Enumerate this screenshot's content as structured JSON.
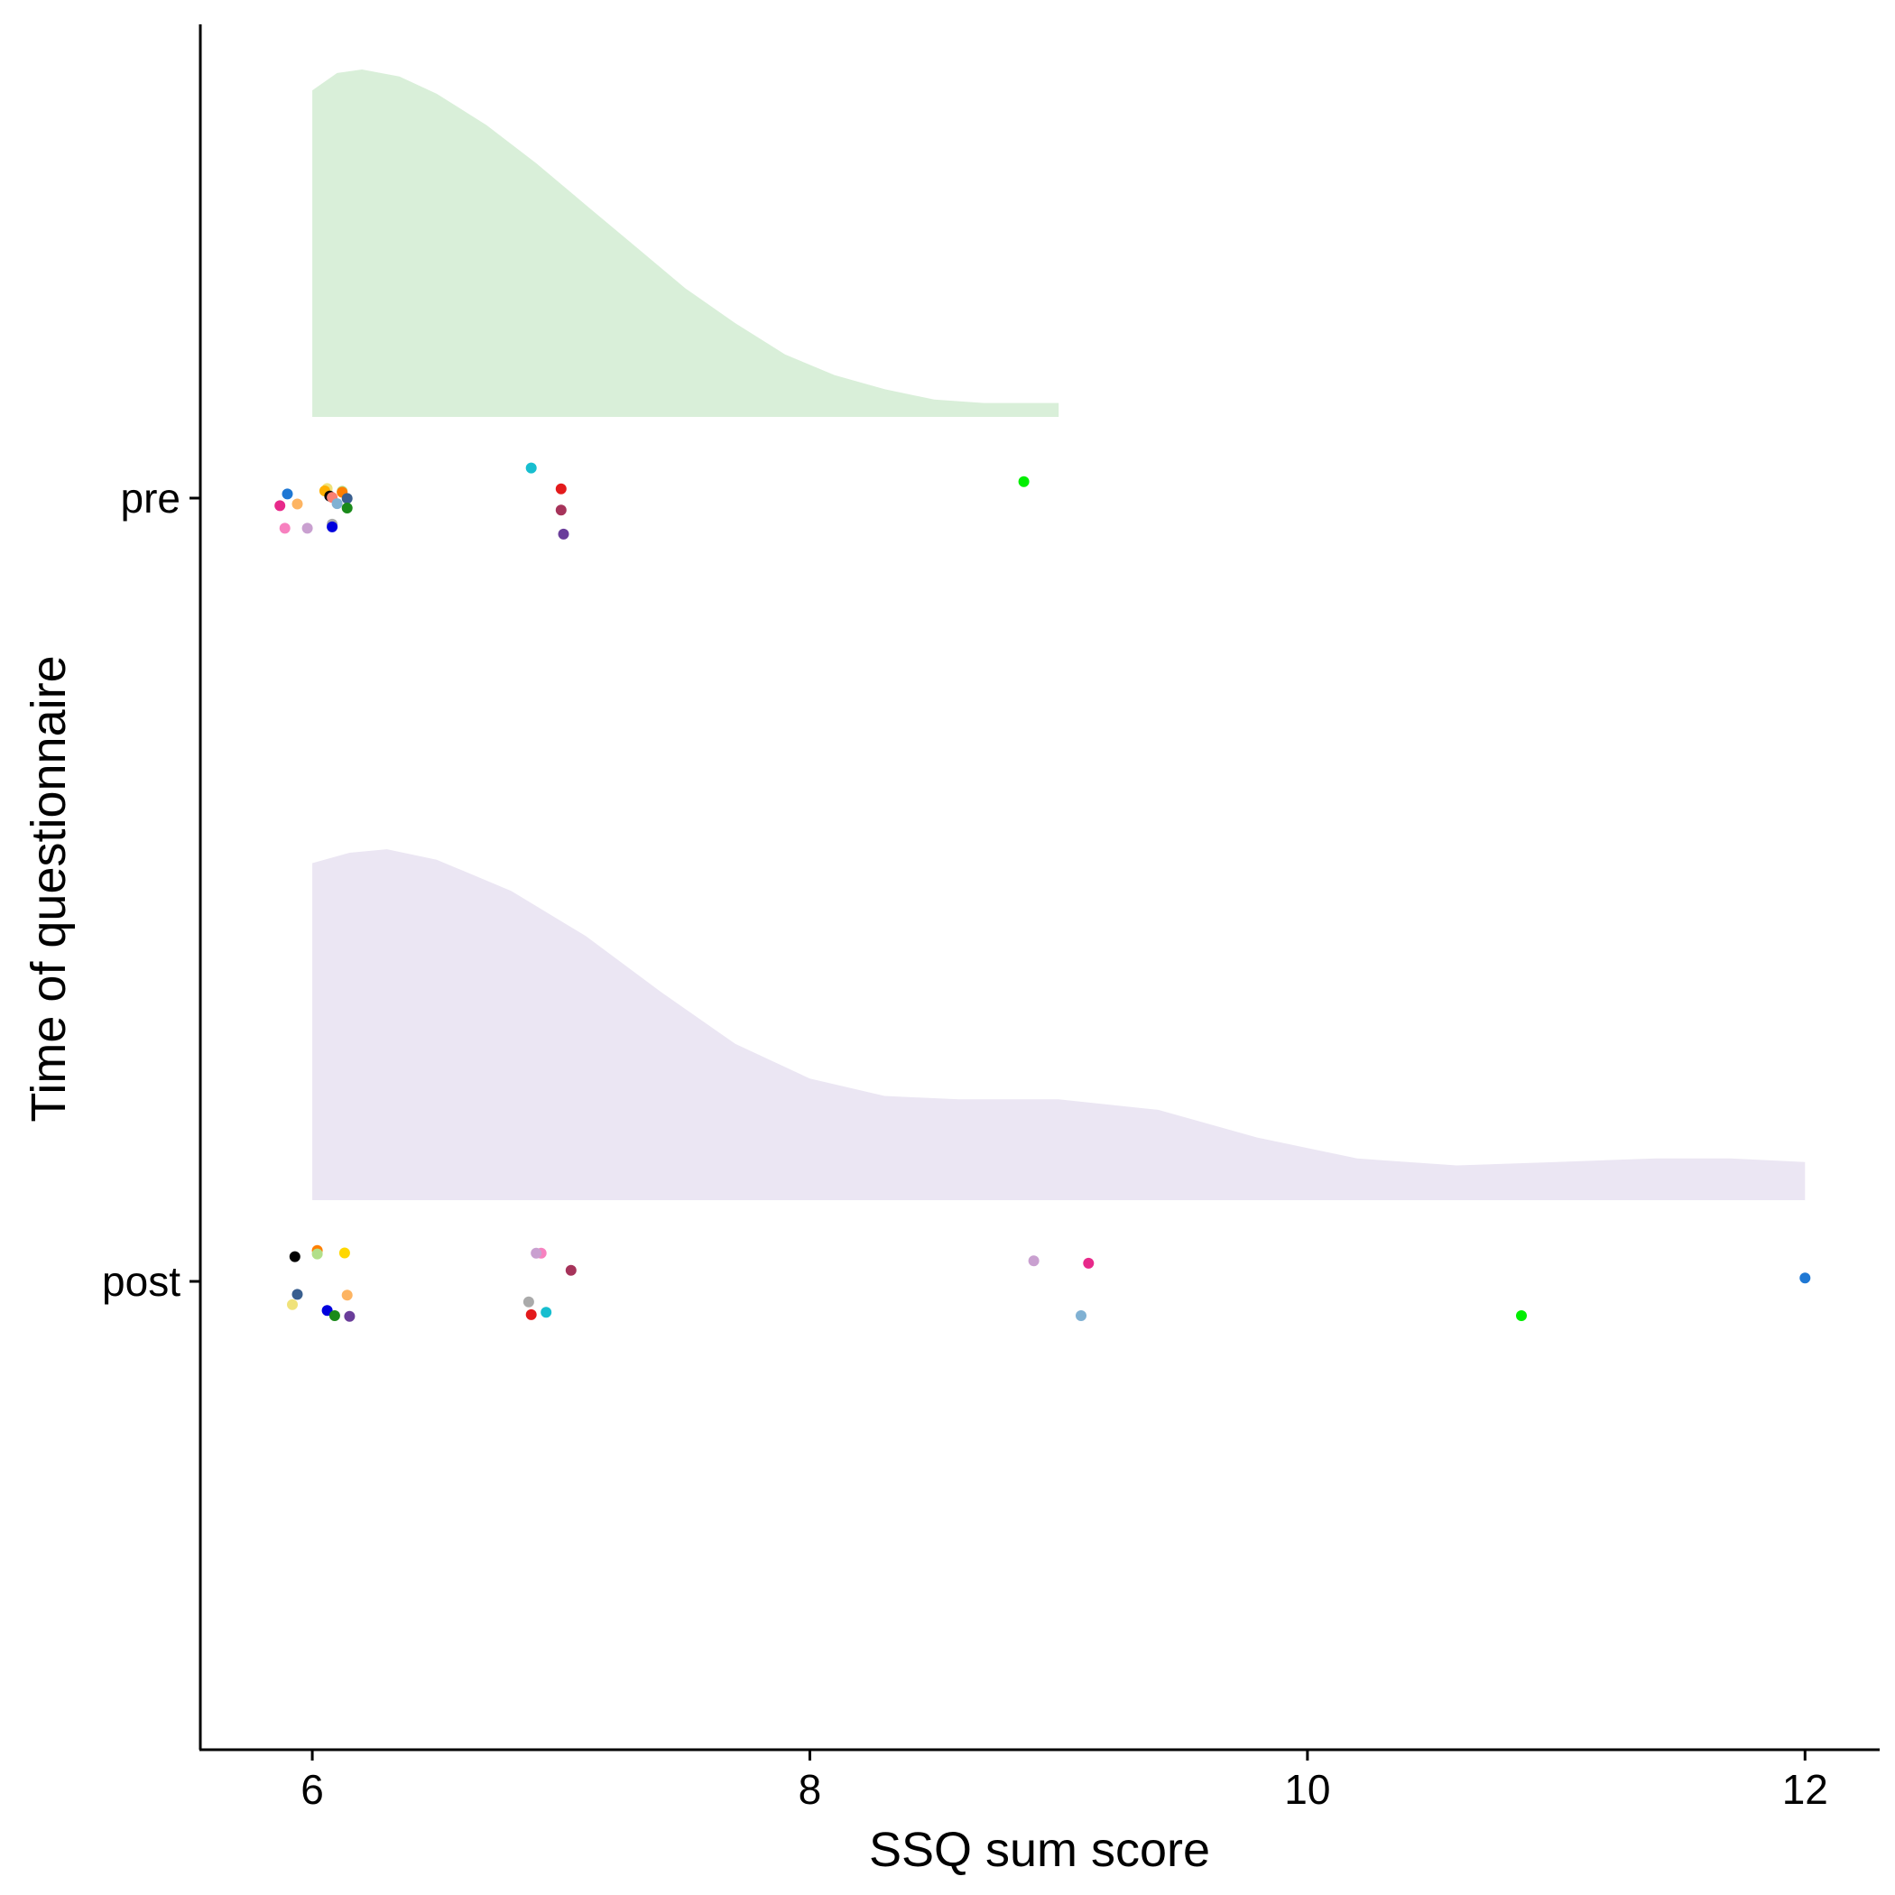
{
  "chart_data": {
    "type": "raincloud",
    "xlabel": "SSQ sum score",
    "ylabel": "Time of questionnaire",
    "xlim": [
      5.55,
      12.3
    ],
    "x_ticks": [
      6,
      8,
      10,
      12
    ],
    "categories": [
      "pre",
      "post"
    ],
    "grid": false,
    "legend": "none",
    "series": [
      {
        "category": "pre",
        "density_color": "#d9efd9",
        "density_range": [
          6,
          9
        ],
        "density_x": [
          6.0,
          6.1,
          6.2,
          6.35,
          6.5,
          6.7,
          6.9,
          7.1,
          7.3,
          7.5,
          7.7,
          7.9,
          8.1,
          8.3,
          8.5,
          8.7,
          9.0
        ],
        "density_y": [
          0.94,
          0.99,
          1.0,
          0.98,
          0.93,
          0.84,
          0.73,
          0.61,
          0.49,
          0.37,
          0.27,
          0.18,
          0.12,
          0.08,
          0.05,
          0.04,
          0.04
        ],
        "points": [
          {
            "x": 5.9,
            "color": "#1f78d4",
            "jitter": 0.12
          },
          {
            "x": 6.06,
            "color": "#f0e27a",
            "jitter": 0.28
          },
          {
            "x": 6.05,
            "color": "#ffb000",
            "jitter": 0.21
          },
          {
            "x": 6.12,
            "color": "#b2df8a",
            "jitter": 0.2
          },
          {
            "x": 6.12,
            "color": "#ff7f00",
            "jitter": 0.17
          },
          {
            "x": 6.07,
            "color": "#000000",
            "jitter": 0.06
          },
          {
            "x": 6.08,
            "color": "#fb8072",
            "jitter": 0.02
          },
          {
            "x": 6.14,
            "color": "#3a5f8f",
            "jitter": -0.01
          },
          {
            "x": 6.1,
            "color": "#80b1d3",
            "jitter": -0.16
          },
          {
            "x": 6.14,
            "color": "#1a8a1a",
            "jitter": -0.29
          },
          {
            "x": 5.87,
            "color": "#e7298a",
            "jitter": -0.22
          },
          {
            "x": 5.94,
            "color": "#fdb462",
            "jitter": -0.17
          },
          {
            "x": 5.89,
            "color": "#f781bf",
            "jitter": -0.88
          },
          {
            "x": 5.98,
            "color": "#c9a0d0",
            "jitter": -0.88
          },
          {
            "x": 6.08,
            "color": "#aaaaaa",
            "jitter": -0.76
          },
          {
            "x": 6.08,
            "color": "#0000dd",
            "jitter": -0.84
          },
          {
            "x": 6.88,
            "color": "#17becf",
            "jitter": 0.88
          },
          {
            "x": 7.0,
            "color": "#e31a1c",
            "jitter": 0.27
          },
          {
            "x": 7.0,
            "color": "#a6335a",
            "jitter": -0.35
          },
          {
            "x": 7.01,
            "color": "#6a3d9a",
            "jitter": -1.05
          },
          {
            "x": 8.86,
            "color": "#00ee00",
            "jitter": 0.48
          }
        ]
      },
      {
        "category": "post",
        "density_color": "#ebe6f3",
        "density_range": [
          6,
          12
        ],
        "density_x": [
          6.0,
          6.15,
          6.3,
          6.5,
          6.8,
          7.1,
          7.4,
          7.7,
          8.0,
          8.3,
          8.6,
          9.0,
          9.4,
          9.8,
          10.2,
          10.6,
          11.0,
          11.4,
          11.7,
          12.0
        ],
        "density_y": [
          0.97,
          1.0,
          1.01,
          0.98,
          0.89,
          0.76,
          0.6,
          0.45,
          0.35,
          0.3,
          0.29,
          0.29,
          0.26,
          0.18,
          0.12,
          0.1,
          0.11,
          0.12,
          0.12,
          0.11
        ],
        "points": [
          {
            "x": 5.93,
            "color": "#000000",
            "jitter": 0.72
          },
          {
            "x": 6.02,
            "color": "#ff7f00",
            "jitter": 0.9
          },
          {
            "x": 6.02,
            "color": "#b2df8a",
            "jitter": 0.8
          },
          {
            "x": 6.13,
            "color": "#ffd700",
            "jitter": 0.83
          },
          {
            "x": 5.94,
            "color": "#3a5f8f",
            "jitter": -0.38
          },
          {
            "x": 6.14,
            "color": "#fdb462",
            "jitter": -0.4
          },
          {
            "x": 5.92,
            "color": "#f0e27a",
            "jitter": -0.68
          },
          {
            "x": 6.06,
            "color": "#0000dd",
            "jitter": -0.85
          },
          {
            "x": 6.09,
            "color": "#1a8a1a",
            "jitter": -1.0
          },
          {
            "x": 6.15,
            "color": "#6a3d9a",
            "jitter": -1.02
          },
          {
            "x": 6.92,
            "color": "#f781bf",
            "jitter": 0.82
          },
          {
            "x": 6.9,
            "color": "#c9a0d0",
            "jitter": 0.82
          },
          {
            "x": 7.04,
            "color": "#a6335a",
            "jitter": 0.32
          },
          {
            "x": 6.87,
            "color": "#aaaaaa",
            "jitter": -0.6
          },
          {
            "x": 6.88,
            "color": "#e31a1c",
            "jitter": -0.97
          },
          {
            "x": 6.94,
            "color": "#17becf",
            "jitter": -0.9
          },
          {
            "x": 8.9,
            "color": "#c9a0d0",
            "jitter": 0.6
          },
          {
            "x": 9.12,
            "color": "#e7298a",
            "jitter": 0.53
          },
          {
            "x": 9.09,
            "color": "#80b1d3",
            "jitter": -1.0
          },
          {
            "x": 10.86,
            "color": "#00ee00",
            "jitter": -1.0
          },
          {
            "x": 12.0,
            "color": "#1f78d4",
            "jitter": 0.1
          }
        ]
      }
    ]
  }
}
